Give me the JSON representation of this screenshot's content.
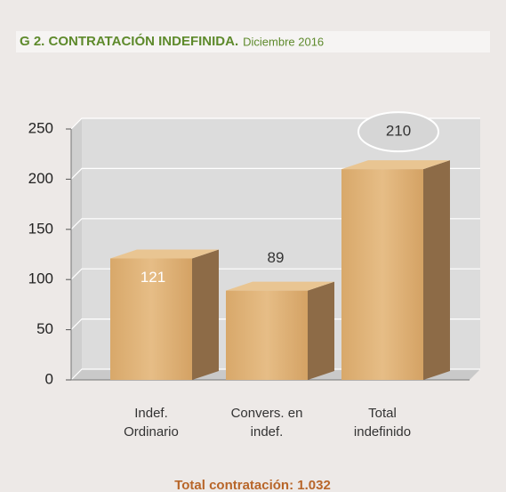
{
  "chart_data": {
    "type": "bar3d",
    "title": "G 2. CONTRATACIÓN INDEFINIDA.",
    "subtitle": "Diciembre  2016",
    "categories": [
      "Indef. Ordinario",
      "Convers. en indef.",
      "Total indefinido"
    ],
    "values": [
      121,
      89,
      210
    ],
    "color": "#d8a86a",
    "ylim": [
      0,
      250
    ],
    "yticks": [
      0,
      50,
      100,
      150,
      200,
      250
    ],
    "grid": true,
    "footer": "Total contratación: 1.032"
  }
}
